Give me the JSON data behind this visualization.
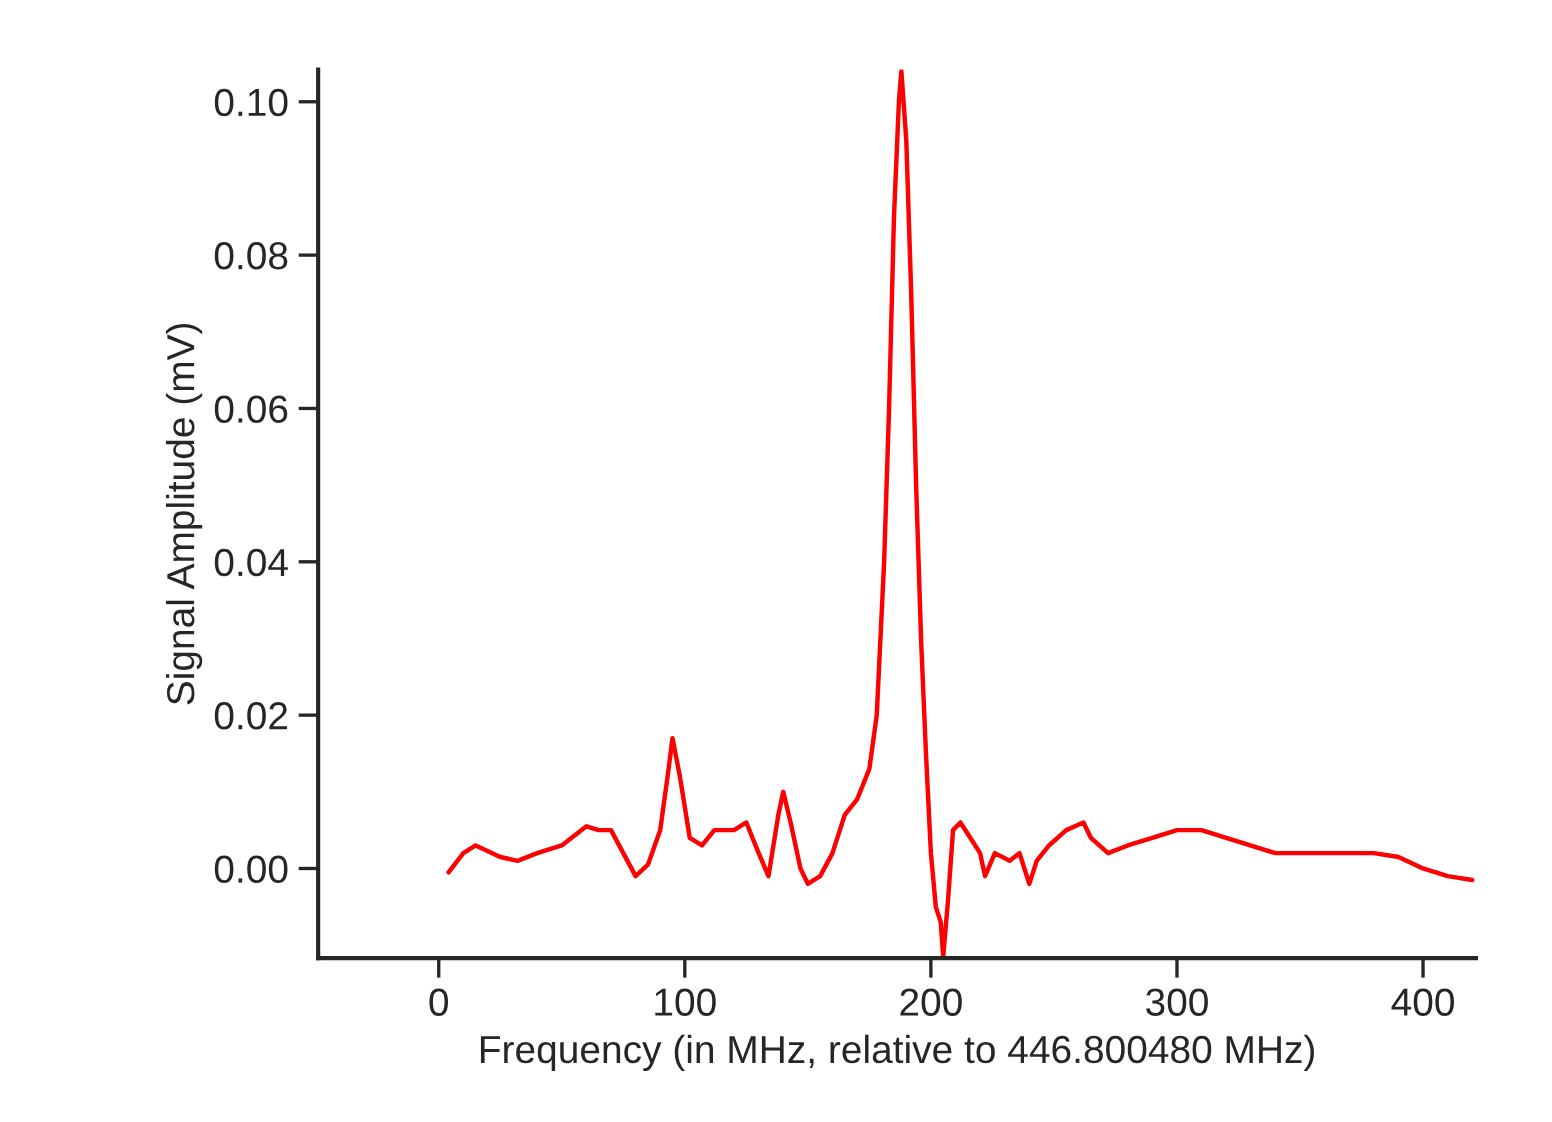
{
  "chart_data": {
    "type": "line",
    "xlabel": "Frequency (in MHz, relative to 446.800480 MHz)",
    "ylabel": "Signal Amplitude (mV)",
    "xlim": [
      -49,
      421.5
    ],
    "ylim": [
      -0.0117,
      0.1042
    ],
    "xticks": [
      0,
      100,
      200,
      300,
      400
    ],
    "yticks": [
      {
        "value": 0,
        "label": "0.00"
      },
      {
        "value": 0.02,
        "label": "0.02"
      },
      {
        "value": 0.04,
        "label": "0.04"
      },
      {
        "value": 0.06,
        "label": "0.06"
      },
      {
        "value": 0.08,
        "label": "0.08"
      },
      {
        "value": 0.1,
        "label": "0.10"
      }
    ],
    "grid": false,
    "marker": "none",
    "line_style": "solid",
    "series": [
      {
        "color": "#ff0000",
        "x": [
          4,
          10,
          15,
          25,
          32,
          40,
          50,
          60,
          65,
          70,
          75,
          80,
          85,
          90,
          93,
          95,
          98,
          102,
          107,
          112,
          120,
          125,
          130,
          134,
          138,
          140,
          143,
          147,
          150,
          155,
          160,
          165,
          170,
          175,
          178,
          181,
          183,
          185,
          187,
          188,
          190,
          192,
          194,
          196,
          198,
          200,
          202,
          204,
          205,
          207,
          209,
          212,
          216,
          220,
          222,
          226,
          232,
          236,
          240,
          243,
          248,
          255,
          262,
          265,
          272,
          280,
          290,
          300,
          310,
          320,
          340,
          360,
          380,
          390,
          400,
          410,
          420
        ],
        "values": [
          -0.0005,
          0.002,
          0.003,
          0.0015,
          0.001,
          0.002,
          0.003,
          0.0055,
          0.005,
          0.005,
          0.002,
          -0.001,
          0.0005,
          0.005,
          0.012,
          0.017,
          0.012,
          0.004,
          0.003,
          0.005,
          0.005,
          0.006,
          0.002,
          -0.001,
          0.007,
          0.01,
          0.006,
          0.0,
          -0.002,
          -0.001,
          0.002,
          0.007,
          0.009,
          0.013,
          0.02,
          0.04,
          0.06,
          0.085,
          0.1,
          0.104,
          0.095,
          0.075,
          0.05,
          0.03,
          0.015,
          0.002,
          -0.005,
          -0.007,
          -0.0115,
          -0.004,
          0.005,
          0.006,
          0.004,
          0.002,
          -0.001,
          0.002,
          0.001,
          0.002,
          -0.002,
          0.001,
          0.003,
          0.005,
          0.006,
          0.004,
          0.002,
          0.003,
          0.004,
          0.005,
          0.005,
          0.004,
          0.002,
          0.002,
          0.002,
          0.0015,
          0.0,
          -0.001,
          -0.0015
        ]
      }
    ]
  }
}
